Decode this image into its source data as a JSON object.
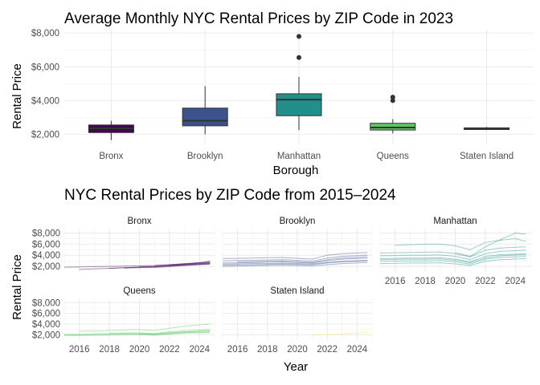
{
  "chart_data": [
    {
      "type": "box",
      "title": "Average Monthly NYC Rental Prices by ZIP Code in 2023",
      "xlabel": "Borough",
      "ylabel": "Rental Price",
      "ylim": [
        1400,
        8200
      ],
      "y_ticks": [
        2000,
        4000,
        6000,
        8000
      ],
      "y_tick_labels": [
        "$2,000",
        "$4,000",
        "$6,000",
        "$8,000"
      ],
      "categories": [
        "Bronx",
        "Brooklyn",
        "Manhattan",
        "Queens",
        "Staten Island"
      ],
      "colors": [
        "#440154",
        "#3b528b",
        "#21908c",
        "#5dc863",
        "#fde725"
      ],
      "boxes": [
        {
          "whisker_low": 1650,
          "q1": 2100,
          "median": 2350,
          "q3": 2550,
          "whisker_high": 2800,
          "outliers": []
        },
        {
          "whisker_low": 2000,
          "q1": 2500,
          "median": 2800,
          "q3": 3550,
          "whisker_high": 4850,
          "outliers": []
        },
        {
          "whisker_low": 2250,
          "q1": 3100,
          "median": 4050,
          "q3": 4400,
          "whisker_high": 5400,
          "outliers": [
            6550,
            7800
          ]
        },
        {
          "whisker_low": 2050,
          "q1": 2250,
          "median": 2400,
          "q3": 2650,
          "whisker_high": 2900,
          "outliers": [
            4000,
            4200
          ]
        },
        {
          "whisker_low": 2250,
          "q1": 2280,
          "median": 2330,
          "q3": 2380,
          "whisker_high": 2430,
          "outliers": []
        }
      ]
    },
    {
      "type": "line",
      "title": "NYC Rental Prices by ZIP Code from 2015–2024",
      "xlabel": "Year",
      "ylabel": "Rental Price",
      "xlim": [
        2015,
        2025
      ],
      "ylim": [
        1000,
        8800
      ],
      "x_ticks": [
        2016,
        2018,
        2020,
        2022,
        2024
      ],
      "y_ticks": [
        2000,
        4000,
        6000,
        8000
      ],
      "y_tick_labels": [
        "$2,000",
        "$4,000",
        "$6,000",
        "$8,000"
      ],
      "panels": [
        {
          "name": "Bronx",
          "color": "#440154",
          "series": [
            {
              "x": [
                2015,
                2016,
                2017,
                2018,
                2019,
                2020,
                2021,
                2022,
                2023,
                2024.7
              ],
              "y": [
                1850,
                1880,
                1950,
                2000,
                2050,
                2100,
                2150,
                2300,
                2450,
                2700
              ]
            },
            {
              "x": [
                2016,
                2017,
                2018,
                2019,
                2020,
                2021,
                2022,
                2023,
                2024.7
              ],
              "y": [
                1450,
                1550,
                1650,
                1750,
                1850,
                1950,
                2100,
                2300,
                2550
              ]
            },
            {
              "x": [
                2018,
                2019,
                2020,
                2021,
                2022,
                2023,
                2024.7
              ],
              "y": [
                1650,
                1750,
                1850,
                1900,
                2050,
                2200,
                2450
              ]
            },
            {
              "x": [
                2019,
                2020,
                2021,
                2022,
                2023,
                2024.7
              ],
              "y": [
                1700,
                1750,
                1800,
                1950,
                2150,
                2400
              ]
            },
            {
              "x": [
                2020,
                2021,
                2022,
                2023,
                2024.7
              ],
              "y": [
                1950,
                2000,
                2150,
                2300,
                2600
              ]
            },
            {
              "x": [
                2021,
                2022,
                2023,
                2024.7
              ],
              "y": [
                2150,
                2300,
                2500,
                2800
              ]
            },
            {
              "x": [
                2022,
                2023,
                2024,
                2024.7
              ],
              "y": [
                2200,
                2400,
                2600,
                3000
              ]
            }
          ]
        },
        {
          "name": "Brooklyn",
          "color": "#3b528b",
          "series": [
            {
              "x": [
                2015,
                2016,
                2017,
                2018,
                2019,
                2020,
                2021,
                2022,
                2023,
                2024.7
              ],
              "y": [
                2200,
                2250,
                2300,
                2350,
                2400,
                2350,
                2300,
                2600,
                2800,
                3000
              ]
            },
            {
              "x": [
                2015,
                2016,
                2017,
                2018,
                2019,
                2020,
                2021,
                2022,
                2023,
                2024.7
              ],
              "y": [
                2600,
                2650,
                2700,
                2750,
                2800,
                2700,
                2600,
                3000,
                3300,
                3500
              ]
            },
            {
              "x": [
                2015,
                2016,
                2017,
                2018,
                2019,
                2020,
                2021,
                2022,
                2023,
                2024.7
              ],
              "y": [
                3000,
                3050,
                3100,
                3150,
                3200,
                3100,
                2900,
                3500,
                3800,
                4000
              ]
            },
            {
              "x": [
                2015,
                2016,
                2017,
                2018,
                2019,
                2020,
                2021,
                2022,
                2023,
                2024.7
              ],
              "y": [
                3400,
                3450,
                3500,
                3550,
                3600,
                3450,
                3300,
                4000,
                4300,
                4500
              ]
            },
            {
              "x": [
                2015,
                2016,
                2017,
                2018,
                2019,
                2020,
                2021,
                2022,
                2023,
                2024.7
              ],
              "y": [
                2400,
                2450,
                2500,
                2500,
                2550,
                2500,
                2450,
                2700,
                2900,
                3100
              ]
            },
            {
              "x": [
                2015,
                2016,
                2017,
                2018,
                2019,
                2020,
                2021,
                2022,
                2023,
                2024.7
              ],
              "y": [
                2000,
                2050,
                2100,
                2150,
                2200,
                2150,
                2100,
                2300,
                2500,
                2700
              ]
            },
            {
              "x": [
                2016,
                2017,
                2018,
                2019,
                2020,
                2021,
                2022,
                2023,
                2024.7
              ],
              "y": [
                2800,
                2850,
                2900,
                2950,
                2850,
                2700,
                3200,
                3500,
                3700
              ]
            }
          ]
        },
        {
          "name": "Manhattan",
          "color": "#21908c",
          "series": [
            {
              "x": [
                2015,
                2016,
                2017,
                2018,
                2019,
                2020,
                2021,
                2022,
                2023,
                2024.7
              ],
              "y": [
                3400,
                3450,
                3500,
                3500,
                3550,
                3300,
                2800,
                3800,
                4100,
                4300
              ]
            },
            {
              "x": [
                2015,
                2016,
                2017,
                2018,
                2019,
                2020,
                2021,
                2022,
                2023,
                2024.7
              ],
              "y": [
                2900,
                2950,
                3000,
                3000,
                3050,
                2800,
                2400,
                3300,
                3600,
                3800
              ]
            },
            {
              "x": [
                2015,
                2016,
                2017,
                2018,
                2019,
                2020,
                2021,
                2022,
                2023,
                2024.7
              ],
              "y": [
                3900,
                3950,
                4000,
                4000,
                4050,
                3800,
                3200,
                4300,
                4700,
                4900
              ]
            },
            {
              "x": [
                2015,
                2016,
                2017,
                2018,
                2019,
                2020,
                2021,
                2022,
                2023,
                2024.7
              ],
              "y": [
                2500,
                2550,
                2600,
                2600,
                2650,
                2450,
                2150,
                2900,
                3200,
                3400
              ]
            },
            {
              "x": [
                2015,
                2016,
                2017,
                2018,
                2019,
                2020,
                2021,
                2022,
                2023,
                2024.7
              ],
              "y": [
                4400,
                4450,
                4500,
                4550,
                4600,
                4300,
                3700,
                4900,
                5300,
                5500
              ]
            },
            {
              "x": [
                2015,
                2016,
                2017,
                2018,
                2019,
                2020,
                2021,
                2022,
                2023,
                2024.7
              ],
              "y": [
                3200,
                3250,
                3300,
                3300,
                3350,
                3100,
                2650,
                3500,
                3900,
                4100
              ]
            },
            {
              "x": [
                2016,
                2017,
                2018,
                2019,
                2020,
                2021,
                2022,
                2023,
                2024,
                2024.7
              ],
              "y": [
                5800,
                5900,
                6000,
                6000,
                5700,
                5000,
                6300,
                6700,
                7000,
                6500
              ]
            },
            {
              "x": [
                2020,
                2021,
                2022,
                2023,
                2024,
                2024.7
              ],
              "y": [
                4500,
                3800,
                5500,
                6800,
                8000,
                7800
              ]
            }
          ]
        },
        {
          "name": "Queens",
          "color": "#5dc863",
          "series": [
            {
              "x": [
                2015,
                2016,
                2017,
                2018,
                2019,
                2020,
                2021,
                2022,
                2023,
                2024.7
              ],
              "y": [
                1950,
                1950,
                2000,
                2050,
                2100,
                2100,
                2000,
                2200,
                2400,
                2500
              ]
            },
            {
              "x": [
                2015,
                2016,
                2017,
                2018,
                2019,
                2020,
                2021,
                2022,
                2023,
                2024.7
              ],
              "y": [
                2100,
                2100,
                2150,
                2200,
                2250,
                2250,
                2150,
                2350,
                2550,
                2700
              ]
            },
            {
              "x": [
                2015,
                2016,
                2017,
                2018,
                2019,
                2020,
                2021,
                2022,
                2023,
                2024.7
              ],
              "y": [
                1850,
                1850,
                1900,
                1950,
                2000,
                2000,
                1900,
                2100,
                2300,
                2400
              ]
            },
            {
              "x": [
                2016,
                2017,
                2018,
                2019,
                2020,
                2021,
                2022,
                2023,
                2024.7
              ],
              "y": [
                2700,
                2700,
                2800,
                2900,
                2950,
                2800,
                3200,
                3600,
                4000
              ]
            },
            {
              "x": [
                2018,
                2019,
                2020,
                2021,
                2022,
                2023,
                2024.7
              ],
              "y": [
                2300,
                2350,
                2350,
                2250,
                2550,
                2800,
                3000
              ]
            },
            {
              "x": [
                2020,
                2021,
                2022,
                2023,
                2024.7
              ],
              "y": [
                2200,
                2100,
                2350,
                2550,
                2800
              ]
            }
          ]
        },
        {
          "name": "Staten Island",
          "color": "#fde725",
          "series": [
            {
              "x": [
                2021,
                2022,
                2023,
                2024,
                2024.7
              ],
              "y": [
                1900,
                2000,
                2150,
                2300,
                2500
              ]
            }
          ]
        }
      ]
    }
  ]
}
